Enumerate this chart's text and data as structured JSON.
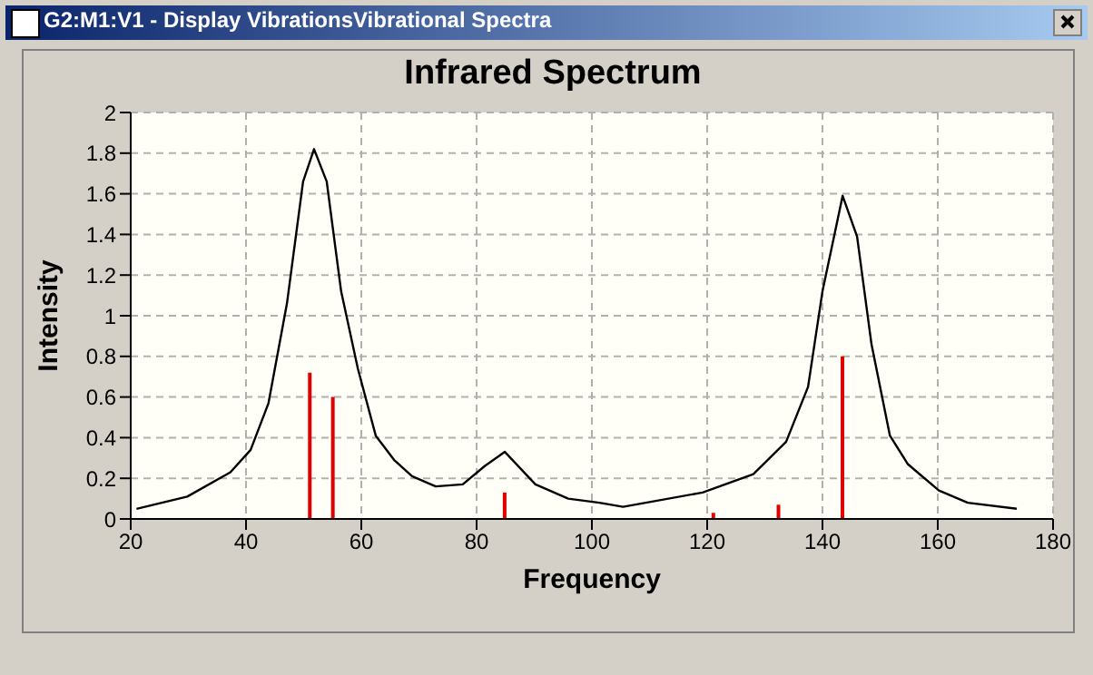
{
  "chart_data": {
    "type": "line",
    "title": "Infrared Spectrum",
    "xlabel": "Frequency",
    "ylabel": "Intensity",
    "annotations": [
      "G2:M1:V1 - Display VibrationsVibrational Spectra"
    ],
    "xlim": [
      20,
      180
    ],
    "xticks": [
      20,
      40,
      60,
      80,
      100,
      120,
      140,
      160,
      180
    ],
    "ylim": [
      0,
      2
    ],
    "yticks": [
      0,
      0.2,
      0.4,
      0.6,
      0.8,
      1,
      1.2,
      1.4,
      1.6,
      1.8,
      2
    ],
    "grid": true,
    "marker": "none",
    "line_style": "solid",
    "series": [
      {
        "color": "#000000",
        "x": [
          21,
          29.8,
          37.3,
          40.8,
          43.9,
          47.1,
          49.9,
          51.8,
          54,
          56.5,
          59.4,
          62.5,
          65.7,
          68.8,
          72.9,
          77.6,
          81.4,
          84.9,
          90.2,
          95.9,
          101.3,
          105.4,
          119.2,
          128,
          133.7,
          137.5,
          140,
          143.5,
          146,
          148.5,
          151.7,
          154.8,
          160.2,
          165.2,
          173.7
        ],
        "values": [
          0.05,
          0.11,
          0.23,
          0.34,
          0.57,
          1.06,
          1.66,
          1.82,
          1.66,
          1.12,
          0.74,
          0.41,
          0.29,
          0.21,
          0.16,
          0.17,
          0.26,
          0.33,
          0.17,
          0.1,
          0.08,
          0.06,
          0.13,
          0.22,
          0.38,
          0.65,
          1.12,
          1.59,
          1.39,
          0.86,
          0.41,
          0.27,
          0.14,
          0.08,
          0.05
        ]
      },
      {
        "type": "bar",
        "color": "#e00000",
        "x": [
          51.1,
          55.1,
          84.9,
          121.1,
          132.4,
          143.5
        ],
        "values": [
          0.72,
          0.6,
          0.13,
          0.03,
          0.07,
          0.8
        ]
      }
    ]
  }
}
